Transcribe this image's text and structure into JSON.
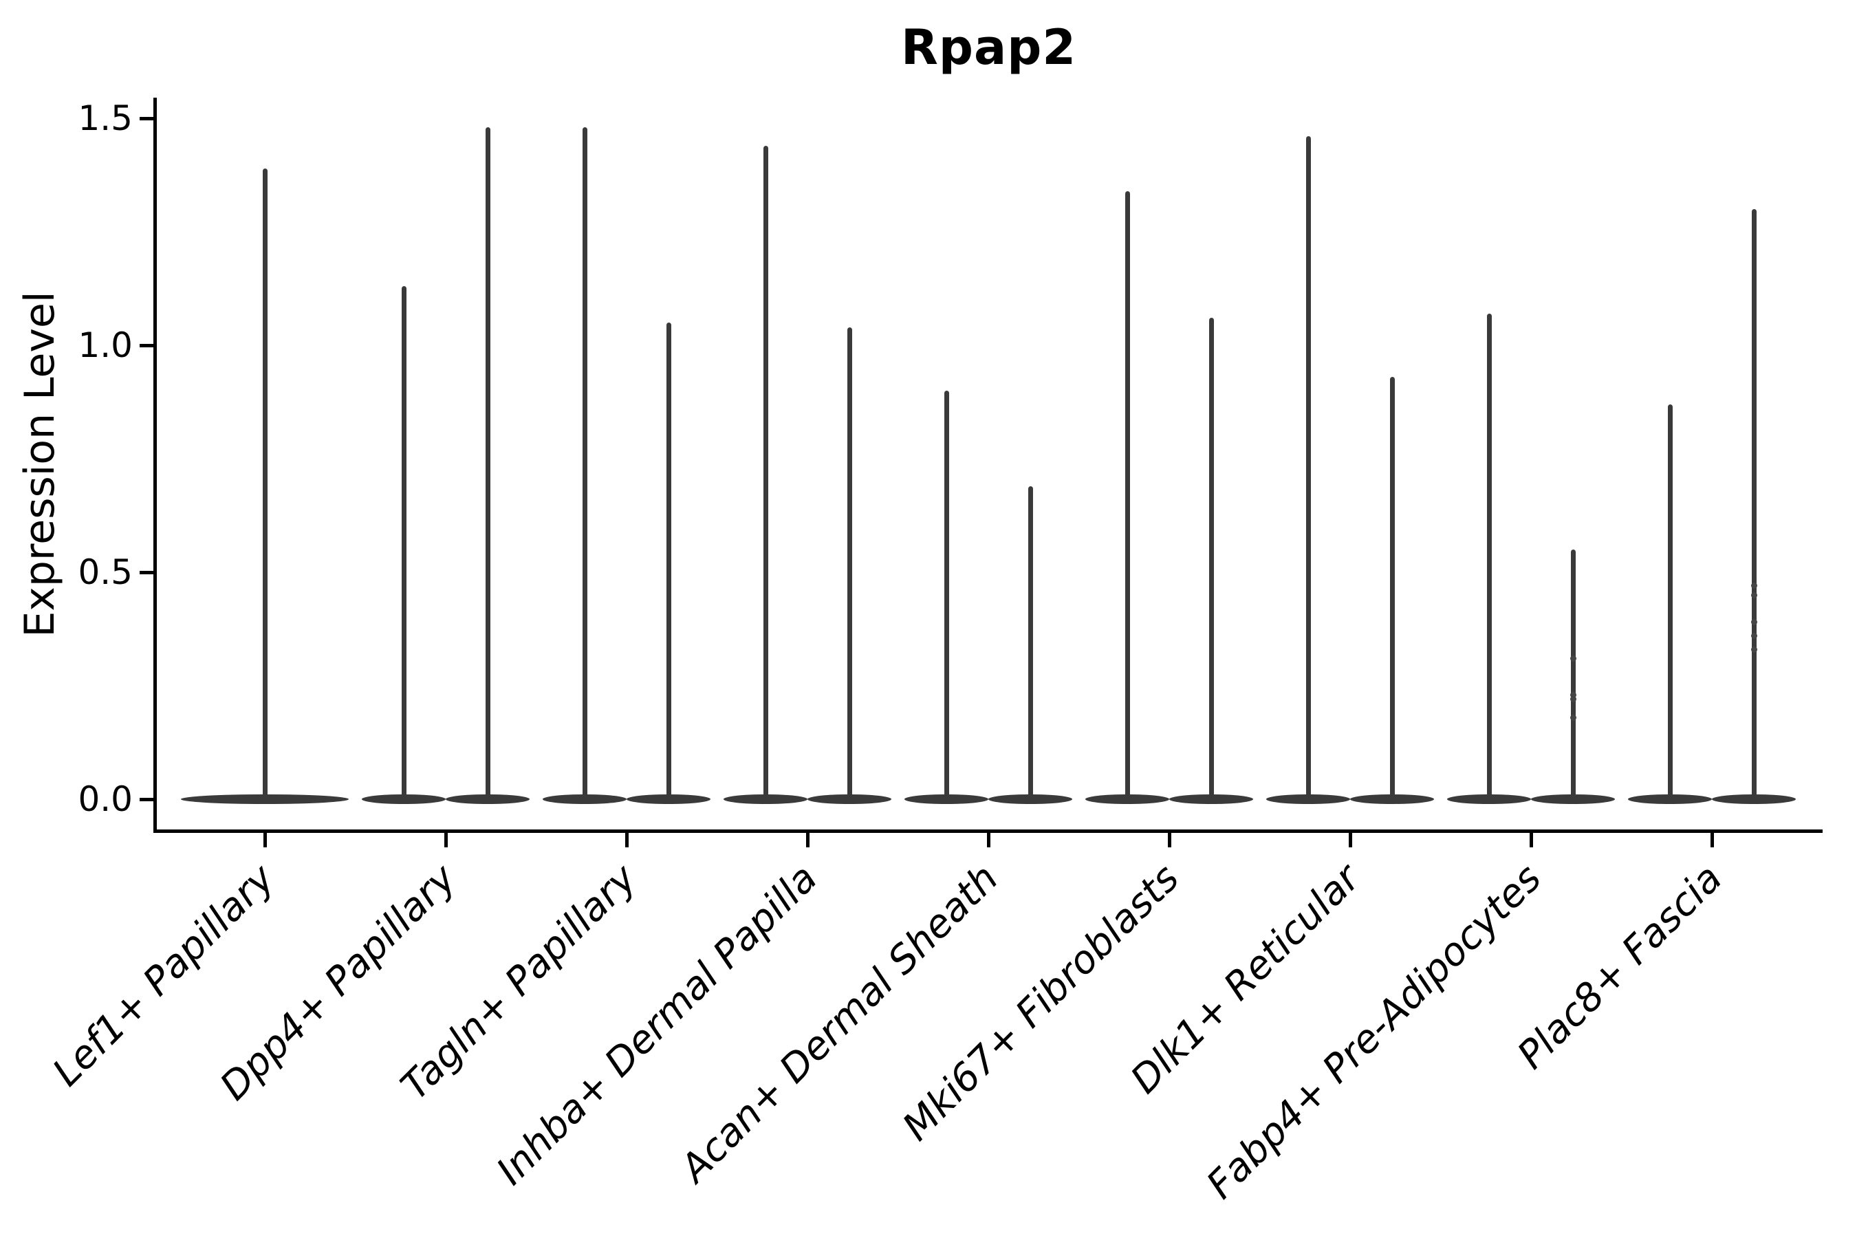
{
  "title": "Rpap2",
  "y_axis": {
    "label": "Expression Level",
    "tick_labels": [
      "0.0",
      "0.5",
      "1.0",
      "1.5"
    ]
  },
  "chart_data": {
    "type": "violin",
    "title": "Rpap2",
    "xlabel": "",
    "ylabel": "Expression Level",
    "ylim": [
      0,
      1.5
    ],
    "y_ticks": [
      0.0,
      0.5,
      1.0,
      1.5
    ],
    "grid": false,
    "legend": "none",
    "style": "thin black violins with dense flat mass at zero and narrow spike to max expression",
    "categories": [
      "Lef1+ Papillary",
      "Dpp4+ Papillary",
      "Tagln+ Papillary",
      "Inhba+ Dermal Papilla",
      "Acan+ Dermal Sheath",
      "Mki67+ Fibroblasts",
      "Dlk1+ Reticular",
      "Fabp4+ Pre-Adipocytes",
      "Plac8+ Fascia"
    ],
    "violins": [
      {
        "category": "Lef1+ Papillary",
        "spikes": [
          {
            "max": 1.39
          }
        ]
      },
      {
        "category": "Dpp4+ Papillary",
        "spikes": [
          {
            "max": 1.13
          },
          {
            "max": 1.48
          }
        ]
      },
      {
        "category": "Tagln+ Papillary",
        "spikes": [
          {
            "max": 1.48
          },
          {
            "max": 1.05
          }
        ]
      },
      {
        "category": "Inhba+ Dermal Papilla",
        "spikes": [
          {
            "max": 1.44
          },
          {
            "max": 1.04
          }
        ]
      },
      {
        "category": "Acan+ Dermal Sheath",
        "spikes": [
          {
            "max": 0.9
          },
          {
            "max": 0.69
          }
        ]
      },
      {
        "category": "Mki67+ Fibroblasts",
        "spikes": [
          {
            "max": 1.34
          },
          {
            "max": 1.06
          }
        ]
      },
      {
        "category": "Dlk1+ Reticular",
        "spikes": [
          {
            "max": 1.46
          },
          {
            "max": 0.93
          }
        ]
      },
      {
        "category": "Fabp4+ Pre-Adipocytes",
        "spikes": [
          {
            "max": 1.07
          },
          {
            "max": 0.55,
            "points": [
              0.31,
              0.23,
              0.22,
              0.18
            ]
          }
        ]
      },
      {
        "category": "Plac8+ Fascia",
        "spikes": [
          {
            "max": 0.87
          },
          {
            "max": 1.3,
            "points": [
              0.47,
              0.45,
              0.39,
              0.36,
              0.33
            ]
          }
        ]
      }
    ]
  },
  "colors": {
    "violin": "#3a3a3a",
    "axis": "#000000",
    "background": "#ffffff",
    "text": "#000000"
  }
}
